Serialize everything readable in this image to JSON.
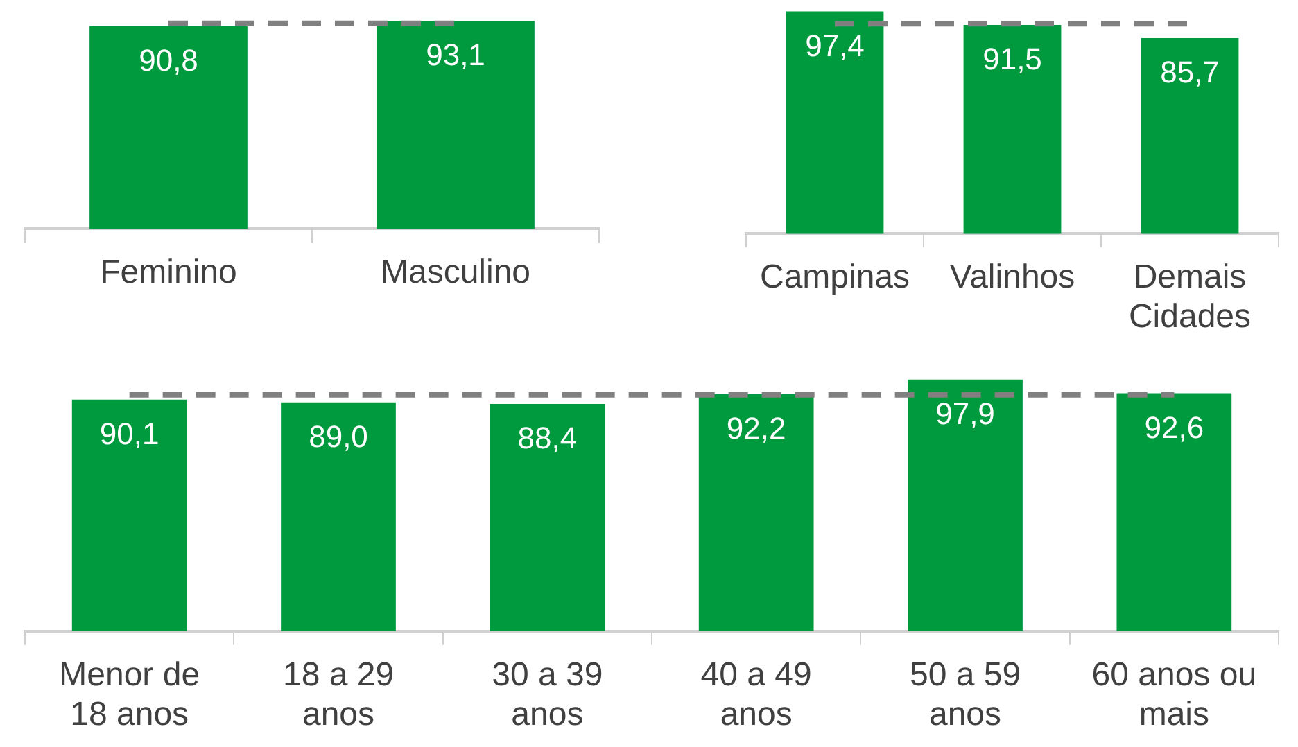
{
  "chart_data": [
    {
      "type": "bar",
      "categories": [
        "Feminino",
        "Masculino"
      ],
      "values": [
        90.8,
        93.1
      ],
      "value_labels": [
        "90,8",
        "93,1"
      ],
      "color": "#009a3e",
      "ref_lines": [
        {
          "axis": "y",
          "value": 92,
          "color": "#808080",
          "line_style": "dashed"
        }
      ],
      "grid": false,
      "legend": false
    },
    {
      "type": "bar",
      "categories": [
        "Campinas",
        "Valinhos",
        "Demais Cidades"
      ],
      "values": [
        97.4,
        91.5,
        85.7
      ],
      "value_labels": [
        "97,4",
        "91,5",
        "85,7"
      ],
      "color": "#009a3e",
      "ref_lines": [
        {
          "axis": "y",
          "value": 92,
          "color": "#808080",
          "line_style": "dashed"
        }
      ],
      "grid": false,
      "legend": false
    },
    {
      "type": "bar",
      "categories": [
        "Menor de 18 anos",
        "18 a 29 anos",
        "30 a 39 anos",
        "40 a 49 anos",
        "50 a 59 anos",
        "60 anos ou mais"
      ],
      "values": [
        90.1,
        89.0,
        88.4,
        92.2,
        97.9,
        92.6
      ],
      "value_labels": [
        "90,1",
        "89,0",
        "88,4",
        "92,2",
        "97,9",
        "92,6"
      ],
      "color": "#009a3e",
      "ref_lines": [
        {
          "axis": "y",
          "value": 92,
          "color": "#808080",
          "line_style": "dashed"
        }
      ],
      "grid": false,
      "legend": false
    }
  ]
}
